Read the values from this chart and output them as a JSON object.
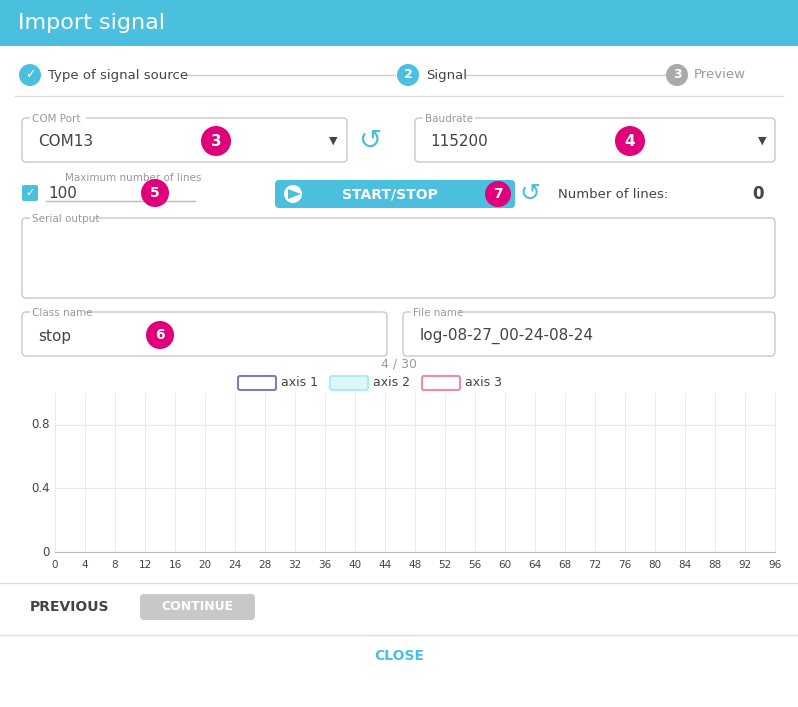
{
  "title": "Import signal",
  "title_bg_color": "#4BBFDE",
  "title_text_color": "#ffffff",
  "bg_color": "#ffffff",
  "step1_label": "Type of signal source",
  "step2_label": "Signal",
  "step3_label": "Preview",
  "step1_color": "#4BBFDE",
  "step2_color": "#4BBFDE",
  "step3_color": "#aaaaaa",
  "com_port_label": "COM Port",
  "com_port_value": "COM13",
  "com_port_num": "3",
  "baudrate_label": "Baudrate",
  "baudrate_value": "115200",
  "baudrate_num": "4",
  "max_lines_label": "Maximum number of lines",
  "max_lines_value": "100",
  "max_lines_num": "5",
  "start_stop_label": "START/STOP",
  "start_stop_num": "7",
  "start_stop_bg": "#4BBFDE",
  "num_lines_label": "Number of lines:",
  "num_lines_value": "0",
  "serial_output_label": "Serial output",
  "class_name_label": "Class name",
  "class_name_value": "stop",
  "class_name_num": "6",
  "file_name_label": "File name",
  "file_name_value": "log-08-27_00-24-08-24",
  "count_label": "4 / 30",
  "axis1_label": "axis 1",
  "axis2_label": "axis 2",
  "axis3_label": "axis 3",
  "axis1_color": "#7b7fb5",
  "axis2_color": "#a8eef5",
  "axis3_color": "#f08aaa",
  "chart_yticks": [
    0,
    0.4,
    0.8
  ],
  "chart_xticks": [
    0,
    4,
    8,
    12,
    16,
    20,
    24,
    28,
    32,
    36,
    40,
    44,
    48,
    52,
    56,
    60,
    64,
    68,
    72,
    76,
    80,
    84,
    88,
    92,
    96
  ],
  "button_previous": "PREVIOUS",
  "button_continue": "CONTINUE",
  "button_continue_color": "#c8c8c8",
  "close_label": "CLOSE",
  "close_color": "#4BBFDE",
  "magenta": "#e0007a",
  "checkbox_color": "#4BBFDE",
  "refresh_color": "#4BBFDE",
  "border_color": "#c8c8c8",
  "text_color": "#444444",
  "small_text_color": "#999999",
  "grid_color": "#e8e8e8",
  "sep_color": "#dddddd"
}
